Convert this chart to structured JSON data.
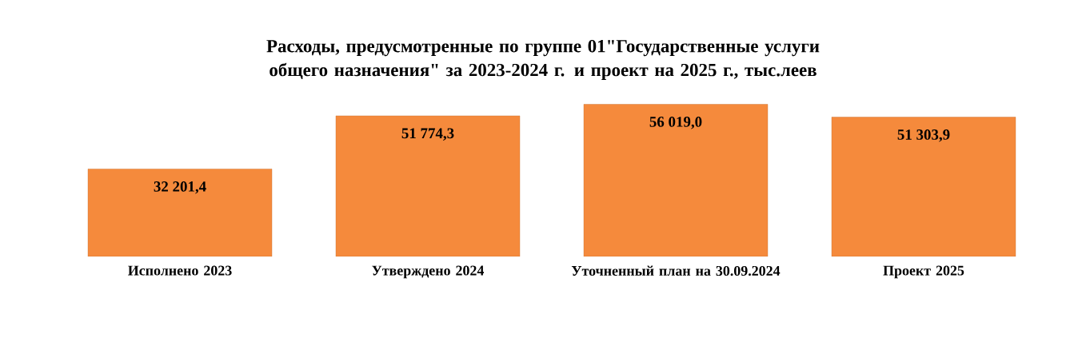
{
  "chart_data": {
    "type": "bar",
    "title": "Расходы, предусмотренные по группе 01\"Государственные услуги общего назначения\"  за 2023-2024 г. и проект на 2025 г., тыс.леев",
    "categories": [
      "Исполнено 2023",
      "Утверждено 2024",
      "Уточненный план на 30.09.2024",
      "Проект 2025"
    ],
    "values": [
      32201.4,
      51774.3,
      56019.0,
      51303.9
    ],
    "value_labels": [
      "32 201,4",
      "51 774,3",
      "56 019,0",
      "51 303,9"
    ],
    "color": "#f58a3c"
  }
}
